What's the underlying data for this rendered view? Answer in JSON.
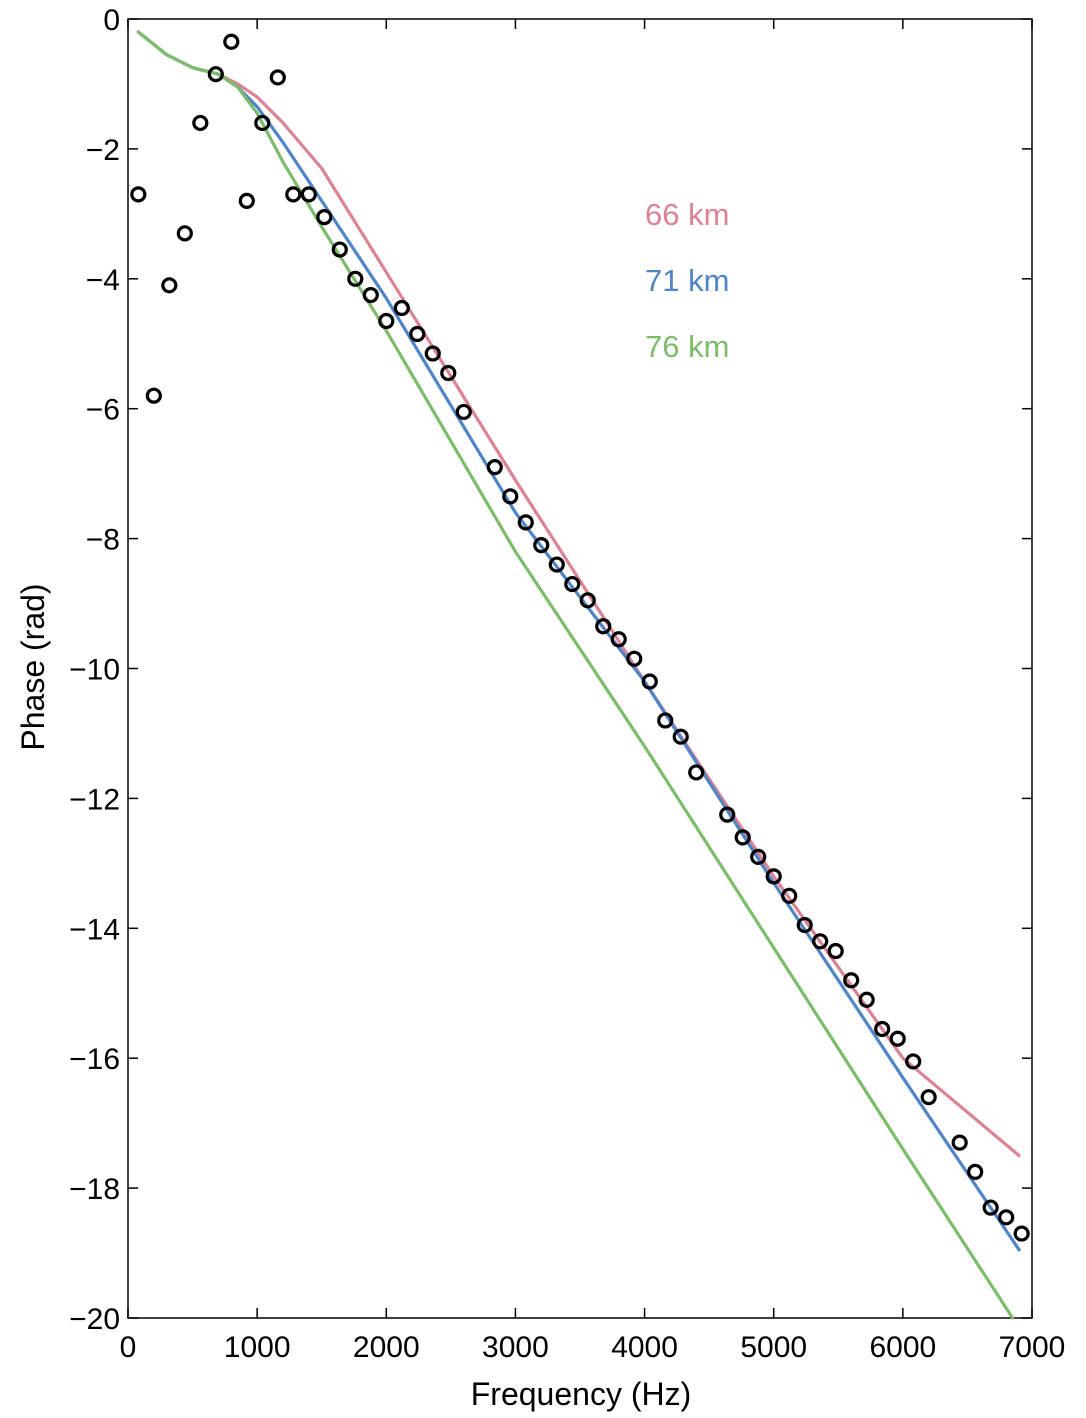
{
  "chart_data": {
    "type": "line",
    "title": "",
    "xlabel": "Frequency (Hz)",
    "ylabel": "Phase (rad)",
    "xlim": [
      0,
      7000
    ],
    "ylim": [
      -20,
      0
    ],
    "x_ticks": [
      0,
      1000,
      2000,
      3000,
      4000,
      5000,
      6000,
      7000
    ],
    "x_tick_labels": [
      "0",
      "1000",
      "2000",
      "3000",
      "4000",
      "5000",
      "6000",
      "7000"
    ],
    "y_ticks": [
      0,
      -2,
      -4,
      -6,
      -8,
      -10,
      -12,
      -14,
      -16,
      -18,
      -20
    ],
    "y_tick_labels": [
      "0",
      "−2",
      "−4",
      "−6",
      "−8",
      "−10",
      "−12",
      "−14",
      "−16",
      "−18",
      "−20"
    ],
    "grid": false,
    "legend_placement": "upper-center",
    "series": [
      {
        "name": "66 km",
        "color": "#dc8294",
        "x": [
          80,
          300,
          500,
          700,
          850,
          1000,
          1200,
          1500,
          2000,
          3000,
          4000,
          5000,
          6000,
          6900
        ],
        "y": [
          -0.2,
          -0.55,
          -0.75,
          -0.85,
          -1.0,
          -1.2,
          -1.6,
          -2.3,
          -3.9,
          -7.1,
          -10.2,
          -13.2,
          -16.0,
          -17.5
        ]
      },
      {
        "name": "71 km",
        "color": "#4f85c8",
        "x": [
          80,
          300,
          500,
          700,
          850,
          1000,
          1200,
          1500,
          2000,
          3000,
          4000,
          5000,
          6000,
          6900
        ],
        "y": [
          -0.2,
          -0.55,
          -0.75,
          -0.85,
          -1.05,
          -1.35,
          -1.9,
          -2.8,
          -4.3,
          -7.6,
          -10.2,
          -13.3,
          -16.3,
          -18.95
        ]
      },
      {
        "name": "76 km",
        "color": "#7cbc6a",
        "x": [
          80,
          300,
          500,
          700,
          850,
          1000,
          1200,
          1500,
          2000,
          3000,
          4000,
          5000,
          6000,
          6850
        ],
        "y": [
          -0.2,
          -0.55,
          -0.75,
          -0.85,
          -1.05,
          -1.45,
          -2.2,
          -3.2,
          -4.8,
          -8.2,
          -11.2,
          -14.3,
          -17.4,
          -20.0
        ]
      },
      {
        "name": "",
        "style": "markers",
        "marker": "circle",
        "color": "#000000",
        "x": [
          80,
          200,
          320,
          440,
          560,
          680,
          800,
          920,
          1040,
          1160,
          1280,
          1400,
          1520,
          1640,
          1760,
          1880,
          2000,
          2120,
          2240,
          2360,
          2480,
          2600,
          2840,
          2960,
          3080,
          3200,
          3320,
          3440,
          3560,
          3680,
          3800,
          3920,
          4040,
          4160,
          4280,
          4400,
          4640,
          4760,
          4880,
          5000,
          5120,
          5240,
          5360,
          5480,
          5600,
          5720,
          5840,
          5960,
          6080,
          6200,
          6440,
          6560,
          6680,
          6800,
          6920
        ],
        "y": [
          -2.7,
          -5.8,
          -4.1,
          -3.3,
          -1.6,
          -0.85,
          -0.35,
          -2.8,
          -1.6,
          -0.9,
          -2.7,
          -2.7,
          -3.05,
          -3.55,
          -4.0,
          -4.25,
          -4.65,
          -4.45,
          -4.85,
          -5.15,
          -5.45,
          -6.05,
          -6.9,
          -7.35,
          -7.75,
          -8.1,
          -8.4,
          -8.7,
          -8.95,
          -9.35,
          -9.55,
          -9.85,
          -10.2,
          -10.8,
          -11.05,
          -11.6,
          -12.25,
          -12.6,
          -12.9,
          -13.2,
          -13.5,
          -13.95,
          -14.2,
          -14.35,
          -14.8,
          -15.1,
          -15.55,
          -15.7,
          -16.05,
          -16.6,
          -17.3,
          -17.75,
          -18.3,
          -18.45,
          -18.7
        ]
      }
    ]
  }
}
